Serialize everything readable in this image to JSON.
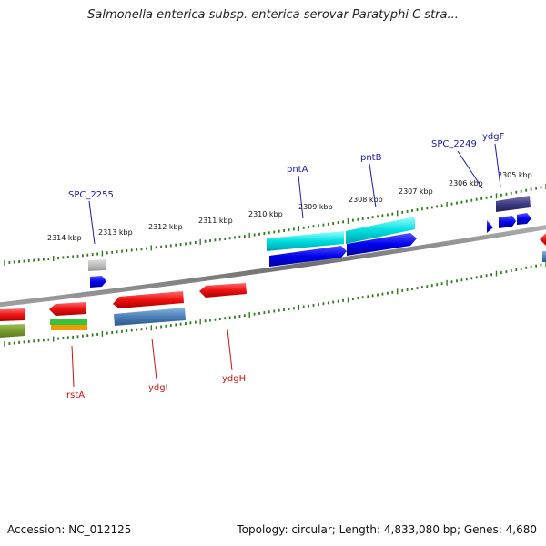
{
  "title": "Salmonella enterica subsp. enterica serovar Paratyphi C stra...",
  "footer": {
    "accession": "Accession: NC_012125",
    "summary": "Topology: circular; Length: 4,833,080 bp; Genes: 4,680"
  },
  "colors": {
    "backbone": "#808080",
    "ruler_ticks": "#2e7d1f",
    "forward_label": "#1a1aa8",
    "reverse_label": "#cc1111"
  },
  "chart_data": {
    "type": "genome_map",
    "ruler_ticks": [
      "2305 kbp",
      "2306 kbp",
      "2307 kbp",
      "2308 kbp",
      "2309 kbp",
      "2310 kbp",
      "2311 kbp",
      "2312 kbp",
      "2313 kbp",
      "2314 kbp"
    ],
    "forward_genes": [
      "ydgF",
      "SPC_2249",
      "pntB",
      "pntA",
      "SPC_2255"
    ],
    "reverse_genes": [
      "ydgH",
      "ydgI",
      "rstA"
    ]
  }
}
